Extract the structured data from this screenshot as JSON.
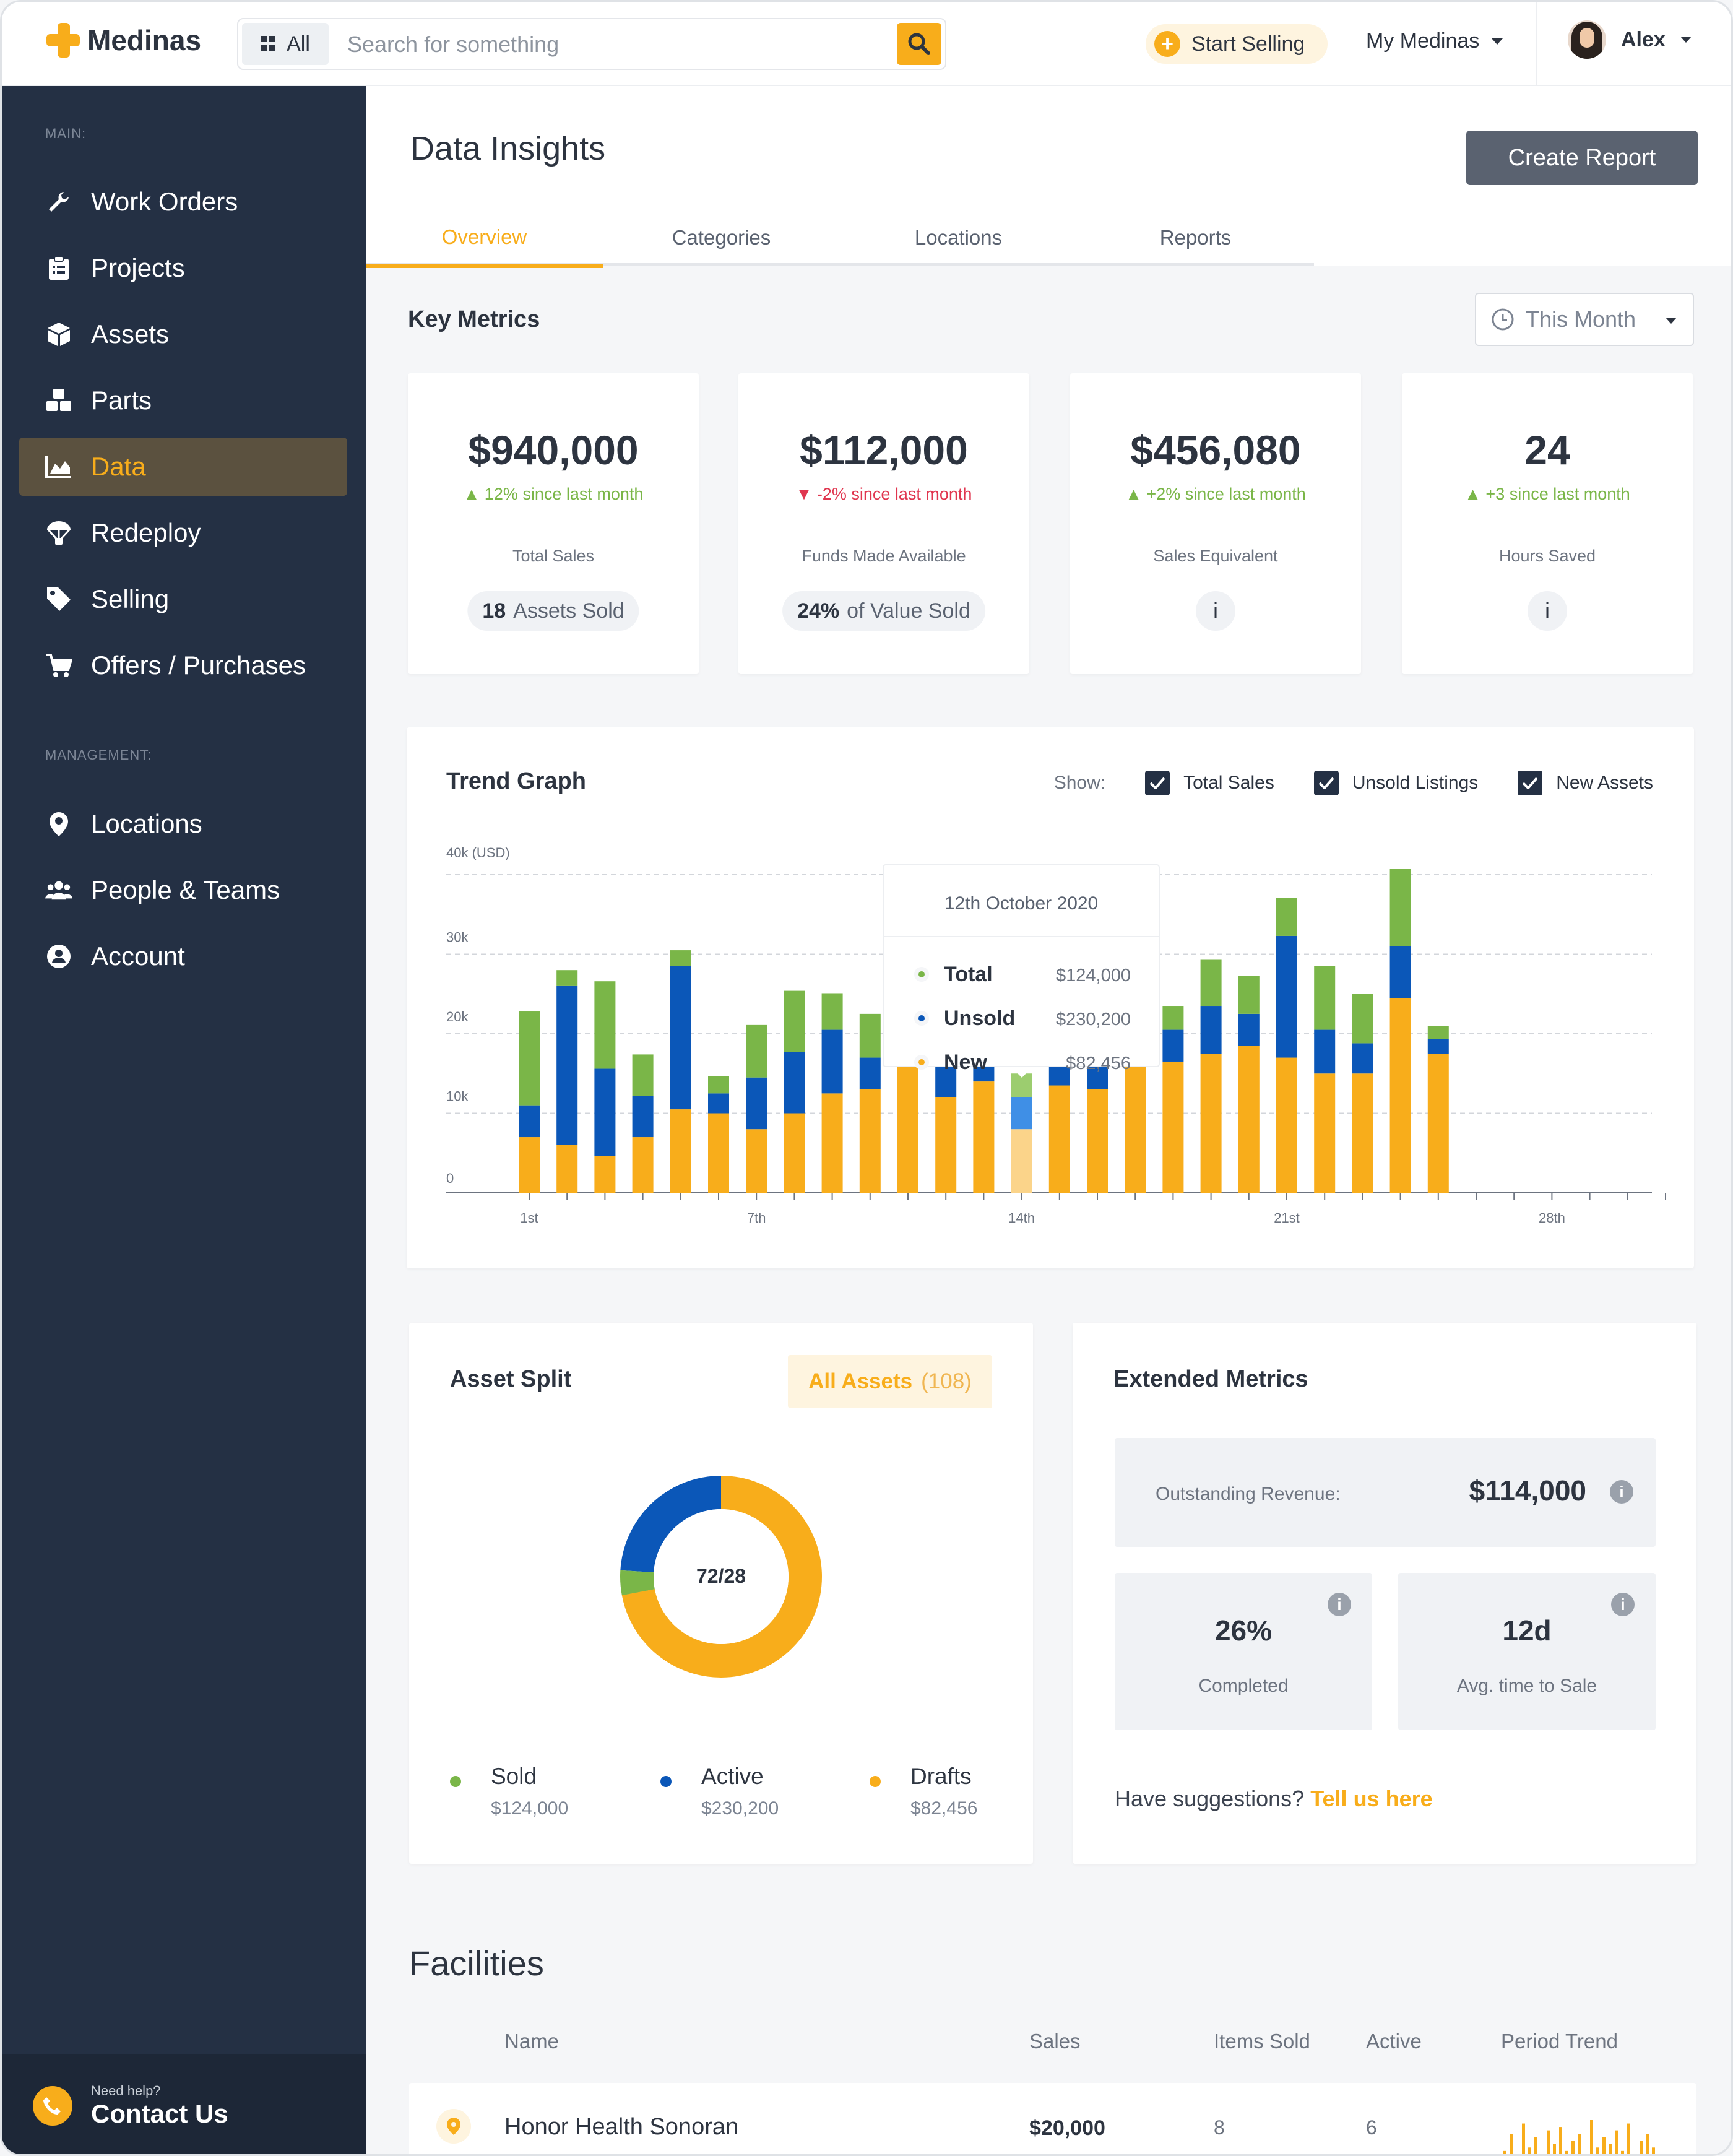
{
  "app": {
    "name": "Medinas"
  },
  "search": {
    "scope": "All",
    "placeholder": "Search for something"
  },
  "topbar": {
    "start_selling": "Start Selling",
    "my_medinas": "My Medinas",
    "user": "Alex"
  },
  "sidebar": {
    "main_heading": "MAIN:",
    "main_items": [
      {
        "label": "Work Orders",
        "icon": "wrench-icon"
      },
      {
        "label": "Projects",
        "icon": "clipboard-icon"
      },
      {
        "label": "Assets",
        "icon": "box-icon"
      },
      {
        "label": "Parts",
        "icon": "cubes-icon"
      },
      {
        "label": "Data",
        "icon": "area-chart-icon",
        "active": true
      },
      {
        "label": "Redeploy",
        "icon": "parachute-icon"
      },
      {
        "label": "Selling",
        "icon": "tag-icon"
      },
      {
        "label": "Offers / Purchases",
        "icon": "cart-icon"
      }
    ],
    "management_heading": "MANAGEMENT:",
    "management_items": [
      {
        "label": "Locations",
        "icon": "map-pin-icon"
      },
      {
        "label": "People & Teams",
        "icon": "users-icon"
      },
      {
        "label": "Account",
        "icon": "user-circle-icon"
      }
    ],
    "help_small": "Need help?",
    "help_big": "Contact Us"
  },
  "page": {
    "title": "Data Insights",
    "create_report": "Create Report",
    "tabs": [
      "Overview",
      "Categories",
      "Locations",
      "Reports"
    ],
    "active_tab": "Overview"
  },
  "key_metrics": {
    "title": "Key Metrics",
    "period": "This Month",
    "cards": [
      {
        "value": "$940,000",
        "change": "12% since last month",
        "trend": "up",
        "label": "Total Sales",
        "pill_bold": "18",
        "pill_text": "Assets Sold"
      },
      {
        "value": "$112,000",
        "change": "-2% since last month",
        "trend": "down",
        "label": "Funds Made Available",
        "pill_bold": "24%",
        "pill_text": "of Value Sold"
      },
      {
        "value": "$456,080",
        "change": "+2% since last month",
        "trend": "up",
        "label": "Sales Equivalent",
        "pill_info": "i"
      },
      {
        "value": "24",
        "change": "+3 since last month",
        "trend": "up",
        "label": "Hours Saved",
        "pill_info": "i"
      }
    ]
  },
  "trend": {
    "title": "Trend Graph",
    "show_label": "Show:",
    "checkboxes": [
      "Total Sales",
      "Unsold Listings",
      "New Assets"
    ],
    "tooltip": {
      "date": "12th October 2020",
      "rows": [
        {
          "name": "Total",
          "value": "$124,000",
          "color": "#7ab648"
        },
        {
          "name": "Unsold",
          "value": "$230,200",
          "color": "#0b57b8"
        },
        {
          "name": "New",
          "value": "$82,456",
          "color": "#f8ad1b"
        }
      ]
    }
  },
  "chart_data": {
    "type": "bar",
    "stacked": true,
    "ylabel": "40k (USD)",
    "yticks": [
      "0",
      "10k",
      "20k",
      "30k"
    ],
    "ylim": [
      0,
      40000
    ],
    "x_tick_labels": {
      "1": "1st",
      "7": "7th",
      "14": "14th",
      "21": "21st",
      "28": "28th"
    },
    "days": [
      1,
      2,
      3,
      4,
      5,
      6,
      7,
      8,
      9,
      10,
      11,
      12,
      13,
      14,
      15,
      16,
      17,
      18,
      19,
      20,
      21,
      22,
      23,
      24,
      25
    ],
    "colors": {
      "new": "#f8ad1b",
      "unsold": "#0b57b8",
      "total": "#7ab648"
    },
    "highlight_day": 14,
    "series": [
      {
        "name": "New",
        "values": [
          7000,
          6000,
          4600,
          7000,
          10500,
          10000,
          8000,
          10000,
          12500,
          13000,
          20500,
          12000,
          14000,
          8000,
          13500,
          13000,
          17500,
          16500,
          17500,
          18500,
          17000,
          15000,
          15000,
          24500,
          17500
        ]
      },
      {
        "name": "Unsold",
        "values": [
          4000,
          20000,
          11000,
          5200,
          18000,
          2500,
          6500,
          7700,
          8000,
          4000,
          4000,
          4000,
          3800,
          4000,
          4000,
          4000,
          4000,
          4000,
          6000,
          4000,
          15300,
          5500,
          3800,
          6500,
          1800
        ]
      },
      {
        "name": "Total",
        "values": [
          11800,
          2000,
          11000,
          5200,
          2000,
          2200,
          6600,
          7700,
          4600,
          5500,
          5500,
          5000,
          5500,
          3000,
          5500,
          5500,
          11500,
          3000,
          5800,
          4800,
          4800,
          8000,
          6200,
          9700,
          1700
        ]
      }
    ]
  },
  "asset_split": {
    "title": "Asset Split",
    "filter_label": "All Assets",
    "filter_count": "(108)",
    "center_label": "72/28",
    "segments": [
      {
        "name": "Sold",
        "value": "$124,000",
        "color": "#7ab648",
        "share": 0.04
      },
      {
        "name": "Active",
        "value": "$230,200",
        "color": "#0b57b8",
        "share": 0.24
      },
      {
        "name": "Drafts",
        "value": "$82,456",
        "color": "#f8ad1b",
        "share": 0.72
      }
    ]
  },
  "extended": {
    "title": "Extended Metrics",
    "revenue_label": "Outstanding Revenue:",
    "revenue_value": "$114,000",
    "completed_value": "26%",
    "completed_label": "Completed",
    "avg_value": "12d",
    "avg_label": "Avg. time to Sale",
    "suggest_text": "Have suggestions?",
    "suggest_link": "Tell us here"
  },
  "facilities": {
    "title": "Facilities",
    "columns": [
      "Name",
      "Sales",
      "Items Sold",
      "Active",
      "Period Trend"
    ],
    "rows": [
      {
        "name": "Honor Health Sonoran",
        "sales": "$20,000",
        "items_sold": "8",
        "active": "6",
        "trend": [
          4,
          9,
          3,
          12,
          5,
          8,
          2,
          10,
          6,
          11,
          4,
          7,
          9,
          3,
          13,
          5,
          8,
          6,
          10,
          4,
          12,
          3,
          7,
          9,
          5
        ]
      }
    ]
  }
}
